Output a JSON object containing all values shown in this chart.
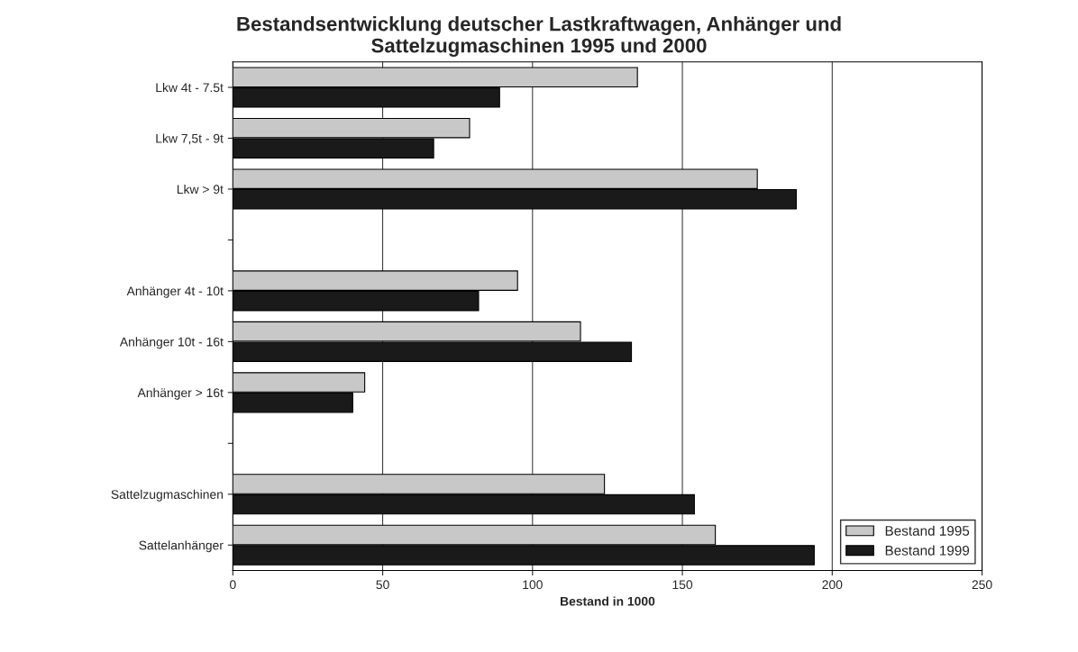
{
  "chart_data": {
    "type": "bar",
    "orientation": "horizontal",
    "title": "Bestandsentwicklung deutscher Lastkraftwagen, Anhänger und\nSattelzugmaschinen 1995 und 2000",
    "xlabel": "Bestand in 1000",
    "categories": [
      "Lkw 4t - 7.5t",
      "Lkw 7,5t - 9t",
      "Lkw > 9t",
      null,
      "Anhänger 4t - 10t",
      "Anhänger 10t - 16t",
      "Anhänger > 16t",
      null,
      "Sattelzugmaschinen",
      "Sattelanhänger"
    ],
    "series": [
      {
        "name": "Bestand 1995",
        "color": "#c8c8c8",
        "values": [
          135,
          79,
          175,
          null,
          95,
          116,
          44,
          null,
          124,
          161
        ]
      },
      {
        "name": "Bestand 1999",
        "color": "#1a1a1a",
        "values": [
          89,
          67,
          188,
          null,
          82,
          133,
          40,
          null,
          154,
          194
        ]
      }
    ],
    "xlim": [
      0,
      250
    ],
    "xticks": [
      0,
      50,
      100,
      150,
      200,
      250
    ],
    "grid": "x",
    "legend": "lower right"
  }
}
